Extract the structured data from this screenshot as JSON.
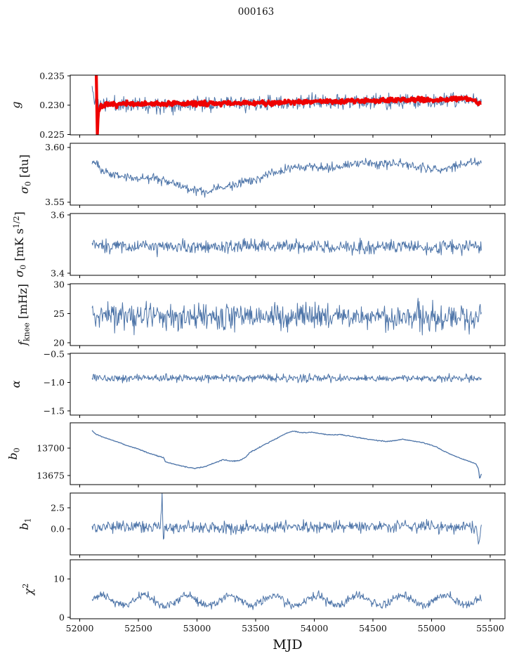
{
  "figure": {
    "title": "000163",
    "xlabel": "MJD"
  },
  "colors": {
    "line_blue": "#4d74a8",
    "line_red": "#ee0000",
    "axis": "#000000",
    "background": "#ffffff"
  },
  "x_axis": {
    "xlim": [
      51919,
      55626
    ],
    "ticks": [
      52000,
      52500,
      53000,
      53500,
      54000,
      54500,
      55000,
      55500
    ],
    "tick_labels": [
      "52000",
      "52500",
      "53000",
      "53500",
      "54000",
      "54500",
      "55000",
      "55500"
    ]
  },
  "chart_data": [
    {
      "id": "g",
      "type": "line",
      "ylabel_text": "g",
      "ylabel_parts": [
        [
          "i",
          "g"
        ]
      ],
      "ylim": [
        0.22494,
        0.23512
      ],
      "yticks": [
        0.225,
        0.23,
        0.235
      ],
      "ytick_labels": [
        "0.225",
        "0.230",
        "0.235"
      ],
      "series": [
        {
          "name": "g-daily",
          "color": "#4d74a8",
          "line_width": 1,
          "seed": 11,
          "n_points": 640,
          "x_range": [
            52105,
            55425
          ],
          "noise": 0.0011,
          "trend": [
            [
              52105,
              0.233
            ],
            [
              52120,
              0.2312
            ],
            [
              52145,
              0.2303
            ],
            [
              52250,
              0.2301
            ],
            [
              52500,
              0.23015
            ],
            [
              53000,
              0.2302
            ],
            [
              53500,
              0.2303
            ],
            [
              54000,
              0.2305
            ],
            [
              54300,
              0.2306
            ],
            [
              54600,
              0.2306
            ],
            [
              54900,
              0.2306
            ],
            [
              55100,
              0.2307
            ],
            [
              55250,
              0.2309
            ],
            [
              55350,
              0.2309
            ],
            [
              55425,
              0.2303
            ]
          ]
        },
        {
          "name": "g-smoothed",
          "color": "#ee0000",
          "line_width": 4.2,
          "seed": 7,
          "n_points": 640,
          "x_range": [
            52140,
            55425
          ],
          "noise": 0.00035,
          "trend": [
            [
              52140,
              0.2368
            ],
            [
              52146,
              0.2295
            ],
            [
              52149,
              0.2242
            ],
            [
              52152,
              0.2262
            ],
            [
              52158,
              0.2288
            ],
            [
              52175,
              0.2297
            ],
            [
              52220,
              0.23
            ],
            [
              52400,
              0.2302
            ],
            [
              52700,
              0.2302
            ],
            [
              53000,
              0.2303
            ],
            [
              53300,
              0.2303
            ],
            [
              53600,
              0.2304
            ],
            [
              53900,
              0.2306
            ],
            [
              54200,
              0.2307
            ],
            [
              54500,
              0.2308
            ],
            [
              54800,
              0.2309
            ],
            [
              55000,
              0.2309
            ],
            [
              55150,
              0.231
            ],
            [
              55280,
              0.2312
            ],
            [
              55340,
              0.231
            ],
            [
              55425,
              0.2302
            ]
          ]
        }
      ]
    },
    {
      "id": "sigma0-du",
      "type": "line",
      "ylabel_text": "σ0 [du]",
      "ylabel_parts": [
        [
          "i",
          "σ"
        ],
        [
          "sub",
          "0"
        ],
        [
          "n",
          " [du]"
        ]
      ],
      "ylim": [
        3.5474,
        3.6038
      ],
      "yticks": [
        3.55,
        3.6
      ],
      "ytick_labels": [
        "3.55",
        "3.60"
      ],
      "series": [
        {
          "name": "sigma0-du",
          "color": "#4d74a8",
          "line_width": 1,
          "seed": 23,
          "n_points": 640,
          "x_range": [
            52105,
            55425
          ],
          "noise": 0.0035,
          "trend": [
            [
              52105,
              3.588
            ],
            [
              52200,
              3.578
            ],
            [
              52350,
              3.574
            ],
            [
              52500,
              3.572
            ],
            [
              52650,
              3.5715
            ],
            [
              52800,
              3.568
            ],
            [
              52950,
              3.561
            ],
            [
              53080,
              3.559
            ],
            [
              53200,
              3.5635
            ],
            [
              53320,
              3.566
            ],
            [
              53450,
              3.569
            ],
            [
              53550,
              3.5725
            ],
            [
              53650,
              3.577
            ],
            [
              53750,
              3.58
            ],
            [
              53850,
              3.5825
            ],
            [
              53950,
              3.5835
            ],
            [
              54050,
              3.581
            ],
            [
              54150,
              3.5825
            ],
            [
              54250,
              3.584
            ],
            [
              54350,
              3.5855
            ],
            [
              54450,
              3.586
            ],
            [
              54550,
              3.5845
            ],
            [
              54650,
              3.586
            ],
            [
              54750,
              3.5855
            ],
            [
              54850,
              3.583
            ],
            [
              54950,
              3.5805
            ],
            [
              55050,
              3.58
            ],
            [
              55150,
              3.5815
            ],
            [
              55250,
              3.5835
            ],
            [
              55330,
              3.587
            ],
            [
              55425,
              3.5865
            ]
          ]
        }
      ]
    },
    {
      "id": "sigma0-mk",
      "type": "line",
      "ylabel_text": "σ0 [mK s1/2]",
      "ylabel_parts": [
        [
          "i",
          "σ"
        ],
        [
          "sub",
          "0"
        ],
        [
          "n",
          " [mK s"
        ],
        [
          "sup",
          "1/2"
        ],
        [
          "n",
          "]"
        ]
      ],
      "ylim": [
        3.3928,
        3.6048
      ],
      "yticks": [
        3.4,
        3.6
      ],
      "ytick_labels": [
        "3.4",
        "3.6"
      ],
      "series": [
        {
          "name": "sigma0-mk",
          "color": "#4d74a8",
          "line_width": 1,
          "seed": 37,
          "n_points": 640,
          "x_range": [
            52105,
            55425
          ],
          "noise": 0.02,
          "trend": [
            [
              52105,
              3.498
            ],
            [
              52400,
              3.492
            ],
            [
              52700,
              3.489
            ],
            [
              53000,
              3.49
            ],
            [
              53400,
              3.493
            ],
            [
              53800,
              3.492
            ],
            [
              54200,
              3.49
            ],
            [
              54600,
              3.493
            ],
            [
              55000,
              3.489
            ],
            [
              55425,
              3.492
            ]
          ]
        }
      ]
    },
    {
      "id": "fknee",
      "type": "line",
      "ylabel_text": "fknee [mHz]",
      "ylabel_parts": [
        [
          "i",
          "f"
        ],
        [
          "sub",
          "knee"
        ],
        [
          "n",
          " [mHz]"
        ]
      ],
      "ylim": [
        19.52,
        30.12
      ],
      "yticks": [
        20,
        25,
        30
      ],
      "ytick_labels": [
        "20",
        "25",
        "30"
      ],
      "series": [
        {
          "name": "fknee",
          "color": "#4d74a8",
          "line_width": 1,
          "seed": 41,
          "n_points": 640,
          "x_range": [
            52105,
            55425
          ],
          "noise": 2.0,
          "trend": [
            [
              52105,
              24.9
            ],
            [
              52500,
              24.5
            ],
            [
              53000,
              24.3
            ],
            [
              53500,
              24.5
            ],
            [
              54000,
              24.6
            ],
            [
              54500,
              24.4
            ],
            [
              55000,
              24.5
            ],
            [
              55425,
              24.3
            ]
          ]
        }
      ]
    },
    {
      "id": "alpha",
      "type": "line",
      "ylabel_text": "α",
      "ylabel_parts": [
        [
          "i",
          "α"
        ]
      ],
      "ylim": [
        -1.574,
        -0.488
      ],
      "yticks": [
        -1.5,
        -1.0,
        -0.5
      ],
      "ytick_labels": [
        "−1.5",
        "−1.0",
        "−0.5"
      ],
      "series": [
        {
          "name": "alpha",
          "color": "#4d74a8",
          "line_width": 1,
          "seed": 53,
          "n_points": 640,
          "x_range": [
            52105,
            55425
          ],
          "noise": 0.055,
          "trend": [
            [
              52105,
              -0.92
            ],
            [
              55425,
              -0.93
            ]
          ]
        }
      ]
    },
    {
      "id": "b0",
      "type": "line",
      "ylabel_text": "b0",
      "ylabel_parts": [
        [
          "i",
          "b"
        ],
        [
          "sub",
          "0"
        ]
      ],
      "ylim": [
        13666.7,
        13723.1
      ],
      "yticks": [
        13675,
        13700
      ],
      "ytick_labels": [
        "13675",
        "13700"
      ],
      "series": [
        {
          "name": "b0",
          "color": "#4d74a8",
          "line_width": 1.3,
          "seed": 67,
          "n_points": 640,
          "x_range": [
            52105,
            55425
          ],
          "noise": 0.35,
          "trend": [
            [
              52105,
              13716
            ],
            [
              52140,
              13712.5
            ],
            [
              52200,
              13710
            ],
            [
              52300,
              13706.5
            ],
            [
              52400,
              13702.5
            ],
            [
              52500,
              13699
            ],
            [
              52600,
              13695
            ],
            [
              52690,
              13692
            ],
            [
              52715,
              13691.5
            ],
            [
              52730,
              13687.5
            ],
            [
              52800,
              13685.5
            ],
            [
              52900,
              13683
            ],
            [
              52980,
              13681.5
            ],
            [
              53060,
              13683
            ],
            [
              53140,
              13686
            ],
            [
              53220,
              13689.5
            ],
            [
              53300,
              13688
            ],
            [
              53360,
              13688.5
            ],
            [
              53420,
              13692
            ],
            [
              53450,
              13696
            ],
            [
              53520,
              13700
            ],
            [
              53600,
              13704.5
            ],
            [
              53680,
              13709
            ],
            [
              53760,
              13713.5
            ],
            [
              53820,
              13715.5
            ],
            [
              53900,
              13714
            ],
            [
              53980,
              13714.5
            ],
            [
              54060,
              13713
            ],
            [
              54140,
              13712
            ],
            [
              54220,
              13712.5
            ],
            [
              54300,
              13711
            ],
            [
              54380,
              13709.5
            ],
            [
              54460,
              13708
            ],
            [
              54540,
              13707
            ],
            [
              54620,
              13706
            ],
            [
              54700,
              13707
            ],
            [
              54760,
              13708
            ],
            [
              54820,
              13707
            ],
            [
              54900,
              13705.5
            ],
            [
              54980,
              13703.5
            ],
            [
              55040,
              13701
            ],
            [
              55100,
              13697.5
            ],
            [
              55160,
              13694.5
            ],
            [
              55240,
              13691
            ],
            [
              55320,
              13688
            ],
            [
              55380,
              13685.5
            ],
            [
              55400,
              13681
            ],
            [
              55410,
              13672
            ],
            [
              55425,
              13676
            ]
          ]
        }
      ]
    },
    {
      "id": "b1",
      "type": "line",
      "ylabel_text": "b1",
      "ylabel_parts": [
        [
          "i",
          "b"
        ],
        [
          "sub",
          "1"
        ]
      ],
      "ylim": [
        -3.08,
        4.25
      ],
      "yticks": [
        0.0,
        2.5
      ],
      "ytick_labels": [
        "0.0",
        "2.5"
      ],
      "series": [
        {
          "name": "b1",
          "color": "#4d74a8",
          "line_width": 1,
          "seed": 71,
          "n_points": 640,
          "x_range": [
            52105,
            55425
          ],
          "noise": 0.6,
          "trend": [
            [
              52105,
              0.2
            ],
            [
              52690,
              0.22
            ],
            [
              52702,
              3.85
            ],
            [
              52712,
              -1.25
            ],
            [
              52725,
              0.22
            ],
            [
              53500,
              0.18
            ],
            [
              54000,
              0.25
            ],
            [
              54500,
              0.28
            ],
            [
              54800,
              0.35
            ],
            [
              55100,
              0.25
            ],
            [
              55300,
              0.2
            ],
            [
              55385,
              0.2
            ],
            [
              55398,
              -2.1
            ],
            [
              55410,
              -0.5
            ],
            [
              55425,
              0.3
            ]
          ]
        }
      ]
    },
    {
      "id": "chi2",
      "type": "line",
      "ylabel_text": "χ2",
      "ylabel_parts": [
        [
          "i",
          "χ"
        ],
        [
          "sup",
          "2"
        ]
      ],
      "ylim": [
        -0.37,
        14.99
      ],
      "yticks": [
        0,
        10
      ],
      "ytick_labels": [
        "0",
        "10"
      ],
      "series": [
        {
          "name": "chi2",
          "color": "#4d74a8",
          "line_width": 1,
          "seed": 97,
          "n_points": 640,
          "x_range": [
            52105,
            55425
          ],
          "noise": 0.9,
          "osc": {
            "period": 365,
            "amp": 1.3,
            "phase": 52099
          },
          "trend": [
            [
              52105,
              4.4
            ],
            [
              55425,
              4.4
            ]
          ]
        }
      ]
    }
  ]
}
